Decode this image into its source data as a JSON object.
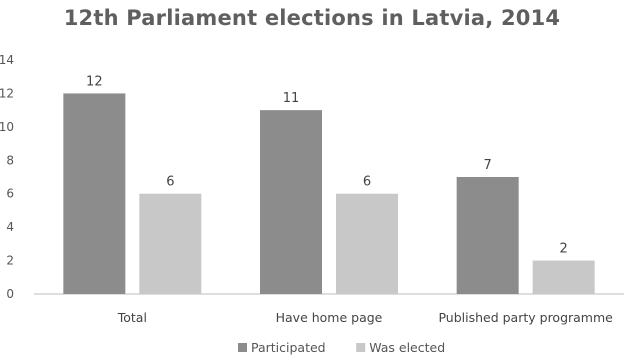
{
  "chart_data": {
    "type": "bar",
    "title": "12th Parliament elections in Latvia, 2014",
    "categories": [
      "Total",
      "Have home page",
      "Published party programme"
    ],
    "series": [
      {
        "name": "Participated",
        "values": [
          12,
          11,
          7
        ],
        "color": "#8c8c8c"
      },
      {
        "name": "Was elected",
        "values": [
          6,
          6,
          2
        ],
        "color": "#c8c8c8"
      }
    ],
    "y_ticks": [
      "0",
      "2",
      "4",
      "6",
      "8",
      "10",
      "12",
      "14"
    ],
    "ylim": [
      0,
      14
    ],
    "xlabel": "",
    "ylabel": "",
    "grid": false,
    "legend_position": "bottom"
  }
}
